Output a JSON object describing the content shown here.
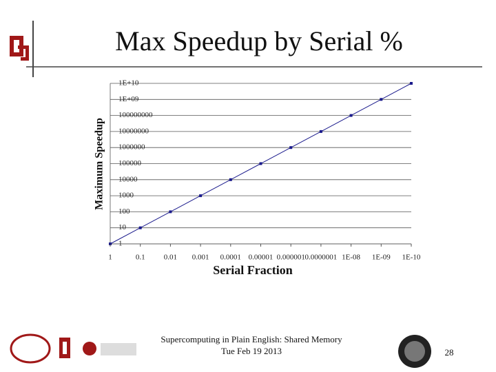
{
  "chart_data": {
    "type": "line",
    "title": "Max Speedup by Serial %",
    "x_label": "Serial Fraction",
    "y_label": "Maximum Speedup",
    "categories": [
      "1",
      "0.1",
      "0.01",
      "0.001",
      "0.0001",
      "0.00001",
      "0.000001",
      "0.0000001",
      "1E-08",
      "1E-09",
      "1E-10"
    ],
    "values": [
      1,
      10,
      100,
      1000,
      10000,
      100000,
      1000000,
      10000000,
      100000000,
      1000000000,
      10000000000
    ],
    "color": "#1a1a8c",
    "log_y": true,
    "grid": true,
    "ylim": [
      1,
      10000000000
    ],
    "yticks": [
      1,
      10,
      100,
      1000,
      10000,
      100000,
      1000000,
      10000000,
      100000000,
      {
        "value": 1000000000,
        "label": "1E+09"
      },
      {
        "value": 10000000000,
        "label": "1E+10"
      }
    ]
  },
  "footer": {
    "lines": [
      "Supercomputing in Plain English: Shared Memory",
      "Tue Feb 19 2013"
    ],
    "page": 28
  }
}
